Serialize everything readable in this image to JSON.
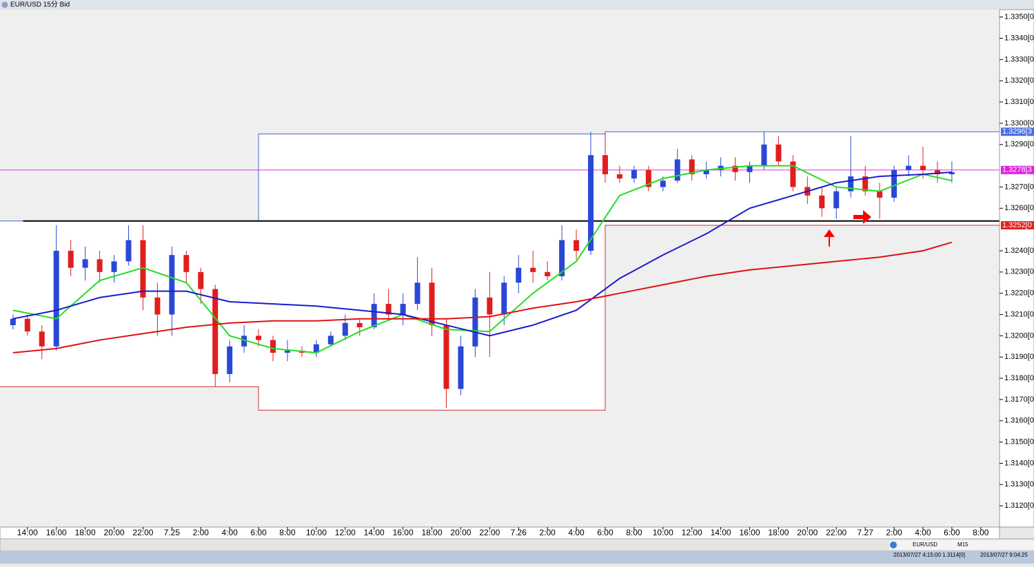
{
  "window_title": "EUR/USD 15分 Bid",
  "chart_data": {
    "type": "candlestick",
    "x": [
      13,
      14,
      15,
      16,
      17,
      18,
      19,
      20,
      21,
      22,
      23,
      24,
      25,
      26,
      27,
      28,
      29,
      30,
      31,
      32,
      33,
      34,
      35,
      36,
      37,
      38,
      39,
      40,
      41,
      42,
      43,
      44,
      45,
      46,
      47,
      48,
      49,
      50,
      51,
      52,
      53,
      54,
      55,
      56,
      57,
      58,
      59,
      60,
      61,
      62,
      63,
      64,
      65,
      66,
      67,
      68,
      69,
      70,
      71,
      72,
      73,
      74,
      75,
      76,
      77,
      78
    ],
    "open": [
      1.3205,
      1.3208,
      1.3202,
      1.3195,
      1.324,
      1.3232,
      1.3236,
      1.323,
      1.3235,
      1.3245,
      1.3218,
      1.321,
      1.3238,
      1.323,
      1.3222,
      1.3182,
      1.3195,
      1.32,
      1.3198,
      1.3192,
      1.3193,
      1.3192,
      1.3196,
      1.32,
      1.3206,
      1.3204,
      1.3215,
      1.321,
      1.3215,
      1.3225,
      1.3205,
      1.3175,
      1.3195,
      1.3218,
      1.321,
      1.3225,
      1.3232,
      1.323,
      1.3228,
      1.3245,
      1.324,
      1.3285,
      1.3276,
      1.3274,
      1.3278,
      1.327,
      1.3273,
      1.3283,
      1.3276,
      1.3278,
      1.328,
      1.3277,
      1.328,
      1.329,
      1.3282,
      1.327,
      1.3266,
      1.326,
      1.3268,
      1.3275,
      1.3268,
      1.3265,
      1.3278,
      1.328,
      1.3278,
      1.3276
    ],
    "high": [
      1.321,
      1.321,
      1.3205,
      1.3252,
      1.3245,
      1.3242,
      1.324,
      1.3238,
      1.3252,
      1.3252,
      1.3225,
      1.3242,
      1.324,
      1.3232,
      1.3224,
      1.3198,
      1.3205,
      1.3203,
      1.32,
      1.3198,
      1.3195,
      1.3198,
      1.3202,
      1.321,
      1.3208,
      1.322,
      1.3222,
      1.322,
      1.3237,
      1.3232,
      1.3208,
      1.32,
      1.3222,
      1.323,
      1.3228,
      1.3238,
      1.324,
      1.3235,
      1.3252,
      1.325,
      1.3296,
      1.3296,
      1.328,
      1.328,
      1.328,
      1.3275,
      1.3288,
      1.3285,
      1.3282,
      1.3284,
      1.3284,
      1.3282,
      1.3296,
      1.3294,
      1.3285,
      1.3275,
      1.327,
      1.327,
      1.3294,
      1.328,
      1.3272,
      1.328,
      1.3285,
      1.3289,
      1.3282,
      1.3282
    ],
    "low": [
      1.3203,
      1.32,
      1.3189,
      1.3193,
      1.3228,
      1.3226,
      1.3225,
      1.3225,
      1.3233,
      1.3212,
      1.32,
      1.32,
      1.3225,
      1.3215,
      1.3176,
      1.3178,
      1.3192,
      1.3195,
      1.3188,
      1.3188,
      1.319,
      1.319,
      1.3195,
      1.3198,
      1.32,
      1.3203,
      1.3208,
      1.3205,
      1.3212,
      1.32,
      1.3166,
      1.3172,
      1.319,
      1.319,
      1.3205,
      1.322,
      1.3225,
      1.3226,
      1.3226,
      1.3236,
      1.3238,
      1.3272,
      1.3272,
      1.3272,
      1.3268,
      1.3268,
      1.3272,
      1.3273,
      1.3274,
      1.3275,
      1.3273,
      1.3272,
      1.3278,
      1.328,
      1.3268,
      1.3262,
      1.3256,
      1.3255,
      1.3265,
      1.3266,
      1.3255,
      1.3263,
      1.3275,
      1.3274,
      1.3272,
      1.3272
    ],
    "close": [
      1.3208,
      1.3202,
      1.3195,
      1.324,
      1.3232,
      1.3236,
      1.323,
      1.3235,
      1.3245,
      1.3218,
      1.321,
      1.3238,
      1.323,
      1.3222,
      1.3182,
      1.3195,
      1.32,
      1.3198,
      1.3192,
      1.3193,
      1.3192,
      1.3196,
      1.32,
      1.3206,
      1.3204,
      1.3215,
      1.321,
      1.3215,
      1.3225,
      1.3205,
      1.3175,
      1.3195,
      1.3218,
      1.321,
      1.3225,
      1.3232,
      1.323,
      1.3228,
      1.3245,
      1.324,
      1.3285,
      1.3276,
      1.3274,
      1.3278,
      1.327,
      1.3273,
      1.3283,
      1.3276,
      1.3278,
      1.328,
      1.3277,
      1.328,
      1.329,
      1.3282,
      1.327,
      1.3266,
      1.326,
      1.3268,
      1.3275,
      1.3268,
      1.3265,
      1.3278,
      1.328,
      1.3278,
      1.3276,
      1.3277
    ],
    "up_color": "#2a48d6",
    "down_color": "#e01e1e",
    "series": [
      {
        "color": "#22dd22",
        "x": [
          13,
          16,
          19,
          22,
          25,
          28,
          31,
          34,
          37,
          40,
          43,
          46,
          49,
          52,
          55,
          58,
          61,
          64,
          67,
          70,
          73,
          76,
          78
        ],
        "values": [
          1.3212,
          1.3208,
          1.3226,
          1.3232,
          1.3225,
          1.32,
          1.3194,
          1.3192,
          1.3202,
          1.321,
          1.3203,
          1.3202,
          1.322,
          1.3235,
          1.3266,
          1.3274,
          1.3278,
          1.328,
          1.328,
          1.327,
          1.3268,
          1.3276,
          1.3273
        ]
      },
      {
        "color": "#1a1acc",
        "x": [
          13,
          16,
          19,
          22,
          25,
          28,
          31,
          34,
          37,
          40,
          43,
          46,
          49,
          52,
          55,
          58,
          61,
          64,
          67,
          70,
          73,
          76,
          78
        ],
        "values": [
          1.3208,
          1.3212,
          1.3218,
          1.3221,
          1.3221,
          1.3216,
          1.3215,
          1.3214,
          1.3212,
          1.321,
          1.3205,
          1.32,
          1.3205,
          1.3212,
          1.3227,
          1.3238,
          1.3248,
          1.326,
          1.3266,
          1.3272,
          1.3275,
          1.3276,
          1.3277
        ]
      },
      {
        "color": "#e01010",
        "x": [
          13,
          16,
          19,
          22,
          25,
          28,
          31,
          34,
          37,
          40,
          43,
          46,
          49,
          52,
          55,
          58,
          61,
          64,
          67,
          70,
          73,
          76,
          78
        ],
        "values": [
          1.3192,
          1.3194,
          1.3198,
          1.3201,
          1.3204,
          1.3206,
          1.3207,
          1.3207,
          1.3208,
          1.3208,
          1.3208,
          1.3209,
          1.3213,
          1.3216,
          1.322,
          1.3224,
          1.3228,
          1.3231,
          1.3233,
          1.3235,
          1.3237,
          1.324,
          1.3244
        ]
      }
    ],
    "outlines": [
      {
        "color": "#4466cc",
        "x": [
          12.1,
          30,
          30,
          54,
          54,
          81.3
        ],
        "values": [
          1.3254,
          1.3254,
          1.3295,
          1.3295,
          1.3296,
          1.3296
        ]
      },
      {
        "color": "#cc3333",
        "x": [
          12.1,
          30,
          30,
          54,
          54,
          81.3
        ],
        "values": [
          1.3176,
          1.3176,
          1.3165,
          1.3165,
          1.3252,
          1.3252
        ]
      }
    ],
    "hlines": [
      {
        "color": "#dd33dd",
        "x": [
          12.1,
          81.3
        ],
        "values": [
          1.3278,
          1.3278
        ]
      },
      {
        "color": "#000000",
        "x": [
          13.7,
          81.3
        ],
        "values": [
          1.3254,
          1.3254
        ]
      }
    ],
    "price_labels": [
      {
        "value": 1.3296,
        "label": "1.3296[3",
        "color": "#4a70e0"
      },
      {
        "value": 1.3278,
        "label": "1.3278[3",
        "color": "#dd22dd"
      },
      {
        "value": 1.3252,
        "label": "1.3252[0",
        "color": "#dd2222"
      }
    ],
    "xlim": [
      12.1,
      81.3
    ],
    "ylim": [
      1.311,
      1.3358
    ],
    "xticks": [
      {
        "value": 14,
        "label": "14:00"
      },
      {
        "value": 16,
        "label": "16:00"
      },
      {
        "value": 18,
        "label": "18:00"
      },
      {
        "value": 20,
        "label": "20:00"
      },
      {
        "value": 22,
        "label": "22:00"
      },
      {
        "value": 24,
        "label": "7.25"
      },
      {
        "value": 26,
        "label": "2:00"
      },
      {
        "value": 28,
        "label": "4:00"
      },
      {
        "value": 30,
        "label": "6:00"
      },
      {
        "value": 32,
        "label": "8:00"
      },
      {
        "value": 34,
        "label": "10:00"
      },
      {
        "value": 36,
        "label": "12:00"
      },
      {
        "value": 38,
        "label": "14:00"
      },
      {
        "value": 40,
        "label": "16:00"
      },
      {
        "value": 42,
        "label": "18:00"
      },
      {
        "value": 44,
        "label": "20:00"
      },
      {
        "value": 46,
        "label": "22:00"
      },
      {
        "value": 48,
        "label": "7.26"
      },
      {
        "value": 50,
        "label": "2:00"
      },
      {
        "value": 52,
        "label": "4:00"
      },
      {
        "value": 54,
        "label": "6:00"
      },
      {
        "value": 56,
        "label": "8:00"
      },
      {
        "value": 58,
        "label": "10:00"
      },
      {
        "value": 60,
        "label": "12:00"
      },
      {
        "value": 62,
        "label": "14:00"
      },
      {
        "value": 64,
        "label": "16:00"
      },
      {
        "value": 66,
        "label": "18:00"
      },
      {
        "value": 68,
        "label": "20:00"
      },
      {
        "value": 70,
        "label": "22:00"
      },
      {
        "value": 72,
        "label": "7.27"
      },
      {
        "value": 74,
        "label": "2:00"
      },
      {
        "value": 76,
        "label": "4:00"
      },
      {
        "value": 78,
        "label": "6:00"
      },
      {
        "value": 80,
        "label": "8:00"
      }
    ],
    "yticks": [
      {
        "value": 1.335,
        "label": "1.3350[0"
      },
      {
        "value": 1.334,
        "label": "1.3340[0"
      },
      {
        "value": 1.333,
        "label": "1.3330[0"
      },
      {
        "value": 1.332,
        "label": "1.3320[0"
      },
      {
        "value": 1.331,
        "label": "1.3310[0"
      },
      {
        "value": 1.33,
        "label": "1.3300[0"
      },
      {
        "value": 1.329,
        "label": "1.3290[0"
      },
      {
        "value": 1.327,
        "label": "1.3270[0"
      },
      {
        "value": 1.326,
        "label": "1.3260[0"
      },
      {
        "value": 1.324,
        "label": "1.3240[0"
      },
      {
        "value": 1.323,
        "label": "1.3230[0"
      },
      {
        "value": 1.322,
        "label": "1.3220[0"
      },
      {
        "value": 1.321,
        "label": "1.3210[0"
      },
      {
        "value": 1.32,
        "label": "1.3200[0"
      },
      {
        "value": 1.319,
        "label": "1.3190[0"
      },
      {
        "value": 1.318,
        "label": "1.3180[0"
      },
      {
        "value": 1.317,
        "label": "1.3170[0"
      },
      {
        "value": 1.316,
        "label": "1.3160[0"
      },
      {
        "value": 1.315,
        "label": "1.3150[0"
      },
      {
        "value": 1.314,
        "label": "1.3140[0"
      },
      {
        "value": 1.313,
        "label": "1.3130[0"
      },
      {
        "value": 1.312,
        "label": "1.3120[0"
      }
    ]
  },
  "status_bar": {
    "symbol": "EUR/USD",
    "timeframe": "M15",
    "cursor": "2013/07/27 4:15:00   1.3114[0]",
    "clock": "2013/07/27 9:04:25"
  }
}
